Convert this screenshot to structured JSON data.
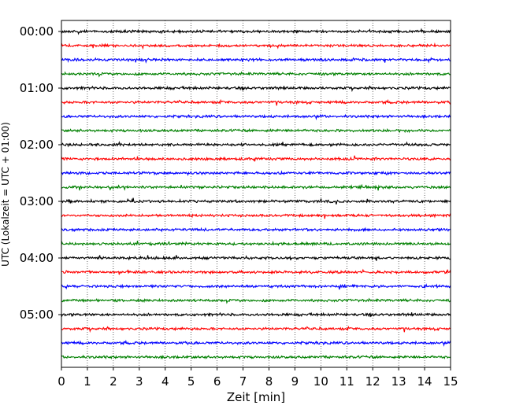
{
  "chart_data": {
    "type": "line",
    "title": "",
    "xlabel": "Zeit  [min]",
    "ylabel": "UTC (Lokalzeit = UTC + 01:00)",
    "xlim": [
      0,
      15
    ],
    "x_ticks": [
      "0",
      "1",
      "2",
      "3",
      "4",
      "5",
      "6",
      "7",
      "8",
      "9",
      "10",
      "11",
      "12",
      "13",
      "14",
      "15"
    ],
    "y_tick_labels": [
      "00:00",
      "01:00",
      "02:00",
      "03:00",
      "04:00",
      "05:00"
    ],
    "grid": "vertical dotted lines at each minute",
    "row_interval_minutes": 15,
    "trace_colors": [
      "#000000",
      "#ff0000",
      "#0000ff",
      "#008000"
    ],
    "rows": [
      {
        "utc": "00:00",
        "color": "#000000"
      },
      {
        "utc": "00:15",
        "color": "#ff0000"
      },
      {
        "utc": "00:30",
        "color": "#0000ff"
      },
      {
        "utc": "00:45",
        "color": "#008000"
      },
      {
        "utc": "01:00",
        "color": "#000000"
      },
      {
        "utc": "01:15",
        "color": "#ff0000"
      },
      {
        "utc": "01:30",
        "color": "#0000ff"
      },
      {
        "utc": "01:45",
        "color": "#008000"
      },
      {
        "utc": "02:00",
        "color": "#000000"
      },
      {
        "utc": "02:15",
        "color": "#ff0000"
      },
      {
        "utc": "02:30",
        "color": "#0000ff"
      },
      {
        "utc": "02:45",
        "color": "#008000"
      },
      {
        "utc": "03:00",
        "color": "#000000"
      },
      {
        "utc": "03:15",
        "color": "#ff0000"
      },
      {
        "utc": "03:30",
        "color": "#0000ff"
      },
      {
        "utc": "03:45",
        "color": "#008000"
      },
      {
        "utc": "04:00",
        "color": "#000000"
      },
      {
        "utc": "04:15",
        "color": "#ff0000"
      },
      {
        "utc": "04:30",
        "color": "#0000ff"
      },
      {
        "utc": "04:45",
        "color": "#008000"
      },
      {
        "utc": "05:00",
        "color": "#000000"
      },
      {
        "utc": "05:15",
        "color": "#ff0000"
      },
      {
        "utc": "05:30",
        "color": "#0000ff"
      },
      {
        "utc": "05:45",
        "color": "#008000"
      }
    ]
  }
}
